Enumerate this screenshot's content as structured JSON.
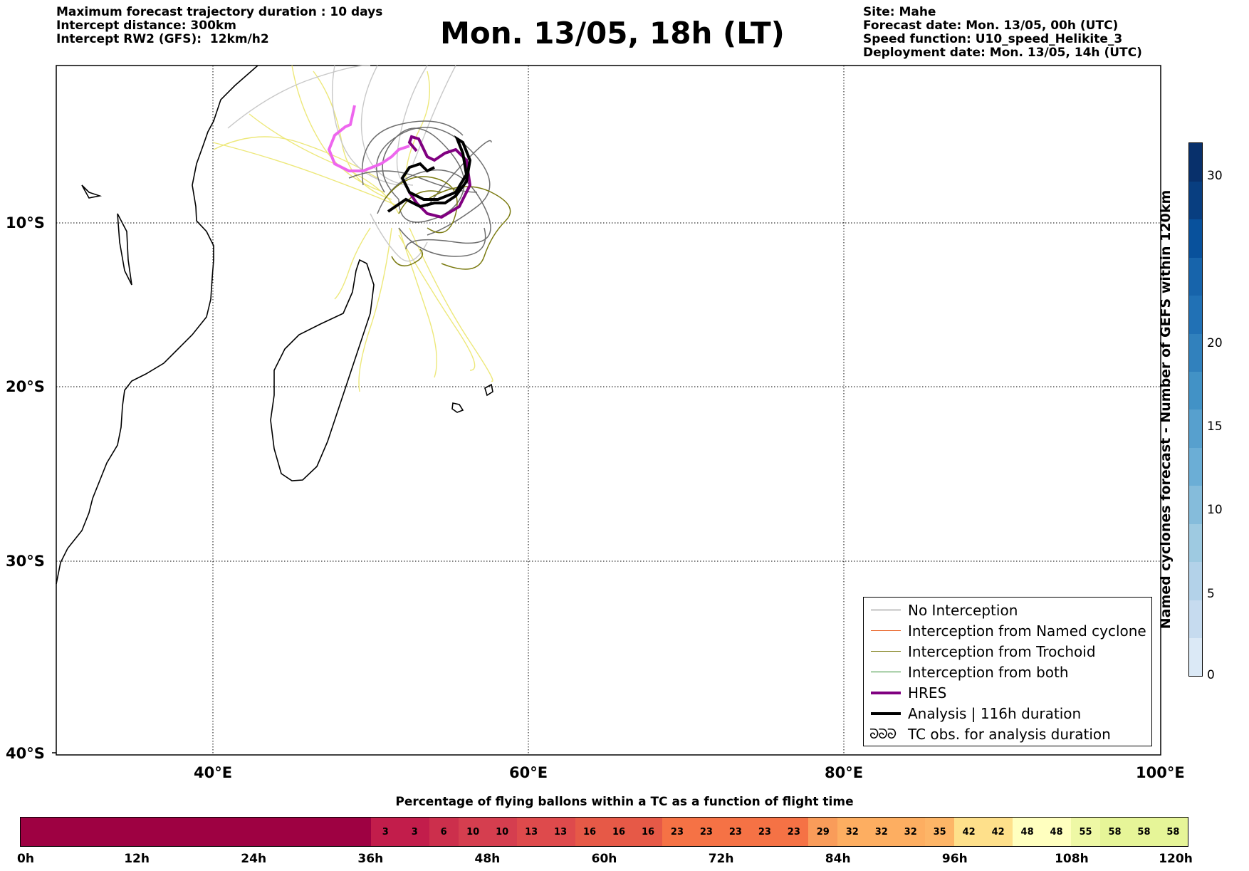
{
  "header_left": [
    "Maximum forecast trajectory duration : 10 days",
    "Intercept distance: 300km",
    "Intercept RW2 (GFS):  12km/h2"
  ],
  "title": "Mon. 13/05, 18h (LT)",
  "header_right": [
    "Site: Mahe",
    "Forecast date: Mon. 13/05, 00h (UTC)",
    "Speed function: U10_speed_Helikite_3",
    "Deployment date: Mon. 13/05, 14h (UTC)"
  ],
  "map": {
    "lon_range": [
      30,
      100
    ],
    "lat_range": [
      -40,
      0
    ],
    "lat_labels": [
      "10°S",
      "20°S",
      "30°S",
      "40°S"
    ],
    "lon_labels": [
      "40°E",
      "60°E",
      "80°E",
      "100°E"
    ]
  },
  "legend": [
    {
      "label": "No Interception",
      "color": "#777777",
      "weight": 1.5
    },
    {
      "label": "Interception from Named cyclone",
      "color": "#e85a1a",
      "weight": 1.5
    },
    {
      "label": "Interception from Trochoid",
      "color": "#7a7a10",
      "weight": 1.5
    },
    {
      "label": "Interception from both",
      "color": "#2a8a2a",
      "weight": 1.5
    },
    {
      "label": "HRES",
      "color": "#800080",
      "weight": 4
    },
    {
      "label": "Analysis | 116h duration",
      "color": "#000000",
      "weight": 4
    },
    {
      "label": "TC obs. for analysis duration",
      "symbol": "ᘐᘐᘐ"
    }
  ],
  "colorbar": {
    "label": "Named cyclones forecast - Number of GEFS within 120km",
    "ticks": [
      "0",
      "5",
      "10",
      "15",
      "20",
      "30"
    ],
    "colors": [
      "#dbe9f6",
      "#c6dbef",
      "#b3d2e9",
      "#9ecae1",
      "#85bcdb",
      "#6baed6",
      "#57a0ce",
      "#4292c6",
      "#3181bd",
      "#2171b5",
      "#1764ab",
      "#08519c",
      "#083e80",
      "#08306b"
    ]
  },
  "flight_bar": {
    "title": "Percentage of flying ballons within a TC as a function of flight time",
    "ticks": [
      "0h",
      "12h",
      "24h",
      "36h",
      "48h",
      "60h",
      "72h",
      "84h",
      "96h",
      "108h",
      "120h"
    ],
    "cells": [
      "3",
      "3",
      "6",
      "10",
      "10",
      "13",
      "13",
      "16",
      "16",
      "16",
      "23",
      "23",
      "23",
      "23",
      "23",
      "29",
      "32",
      "32",
      "32",
      "35",
      "42",
      "42",
      "48",
      "48",
      "55",
      "58",
      "58",
      "58"
    ],
    "colors": {
      "empty": "#9e0142",
      "3": "#c21d4b",
      "6": "#cc2f4c",
      "10": "#d53e4f",
      "13": "#de4a4c",
      "16": "#e65947",
      "23": "#f57245",
      "29": "#f99c5a",
      "32": "#fdae61",
      "35": "#fdb567",
      "42": "#fee08b",
      "48": "#ffffbf",
      "55": "#eef8a5",
      "58": "#e6f598"
    }
  }
}
